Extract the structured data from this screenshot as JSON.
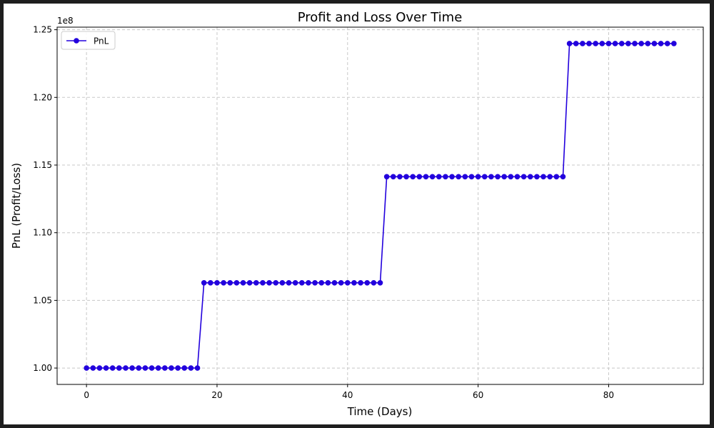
{
  "chart_data": {
    "type": "line",
    "title": "Profit and Loss Over Time",
    "xlabel": "Time (Days)",
    "ylabel": "PnL (Profit/Loss)",
    "y_offset_label": "1e8",
    "xlim": [
      -4.5,
      94.5
    ],
    "ylim": [
      0.9879,
      1.2519
    ],
    "x_ticks": [
      0,
      20,
      40,
      60,
      80
    ],
    "x_tick_labels": [
      "0",
      "20",
      "40",
      "60",
      "80"
    ],
    "y_ticks": [
      1.0,
      1.05,
      1.1,
      1.15,
      1.2,
      1.25
    ],
    "y_tick_labels": [
      "1.00",
      "1.05",
      "1.10",
      "1.15",
      "1.20",
      "1.25"
    ],
    "grid": true,
    "legend_position": "upper-left",
    "series": [
      {
        "name": "PnL",
        "color": "#2200dd",
        "marker": "circle",
        "segments": [
          {
            "x_start": 0,
            "x_end": 17,
            "value": 1.0
          },
          {
            "x_start": 18,
            "x_end": 45,
            "value": 1.063
          },
          {
            "x_start": 46,
            "x_end": 73,
            "value": 1.1414
          },
          {
            "x_start": 74,
            "x_end": 90,
            "value": 1.2398
          }
        ]
      }
    ]
  }
}
